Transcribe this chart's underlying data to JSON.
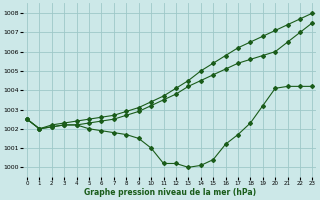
{
  "xlabel": "Graphe pression niveau de la mer (hPa)",
  "background_color": "#cce8e8",
  "grid_color": "#9ec8c8",
  "line_color": "#1a5c1a",
  "ylim": [
    999.5,
    1008.5
  ],
  "xlim": [
    -0.3,
    23.3
  ],
  "yticks": [
    1000,
    1001,
    1002,
    1003,
    1004,
    1005,
    1006,
    1007,
    1008
  ],
  "xticks": [
    0,
    1,
    2,
    3,
    4,
    5,
    6,
    7,
    8,
    9,
    10,
    11,
    12,
    13,
    14,
    15,
    16,
    17,
    18,
    19,
    20,
    21,
    22,
    23
  ],
  "line1_x": [
    0,
    1,
    2,
    3,
    4,
    5,
    6,
    7,
    8,
    9,
    10,
    11,
    12,
    13,
    14,
    15,
    16,
    17,
    18,
    19,
    20,
    21,
    22,
    23
  ],
  "line1_y": [
    1002.5,
    1002.0,
    1002.2,
    1002.3,
    1002.4,
    1002.5,
    1002.6,
    1002.7,
    1002.9,
    1003.1,
    1003.4,
    1003.7,
    1004.1,
    1004.5,
    1005.0,
    1005.4,
    1005.8,
    1006.2,
    1006.5,
    1006.8,
    1007.1,
    1007.4,
    1007.7,
    1008.0
  ],
  "line2_x": [
    0,
    1,
    2,
    3,
    4,
    5,
    6,
    7,
    8,
    9,
    10,
    11,
    12,
    13,
    14,
    15,
    16,
    17,
    18,
    19,
    20,
    21,
    22,
    23
  ],
  "line2_y": [
    1002.5,
    1002.0,
    1002.1,
    1002.2,
    1002.2,
    1002.3,
    1002.4,
    1002.5,
    1002.7,
    1002.9,
    1003.2,
    1003.5,
    1003.8,
    1004.2,
    1004.5,
    1004.8,
    1005.1,
    1005.4,
    1005.6,
    1005.8,
    1006.0,
    1006.5,
    1007.0,
    1007.5
  ],
  "line3_x": [
    0,
    1,
    2,
    3,
    4,
    5,
    6,
    7,
    8,
    9,
    10,
    11,
    12,
    13,
    14,
    15,
    16,
    17,
    18,
    19,
    20,
    21,
    22,
    23
  ],
  "line3_y": [
    1002.5,
    1002.0,
    1002.1,
    1002.2,
    1002.2,
    1002.0,
    1001.9,
    1001.8,
    1001.7,
    1001.5,
    1001.0,
    1000.2,
    1000.2,
    1000.0,
    1000.1,
    1000.4,
    1001.2,
    1001.7,
    1002.3,
    1003.2,
    1004.1,
    1004.2,
    1004.2,
    1004.2
  ]
}
